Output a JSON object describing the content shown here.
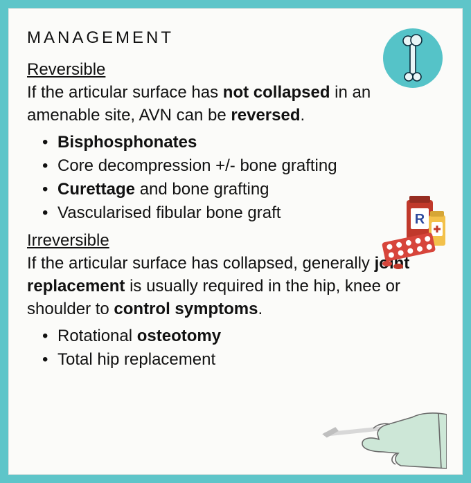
{
  "colors": {
    "background": "#5ec5c9",
    "card": "#fbfbf9",
    "text": "#111111",
    "bone_badge": "#55c3c8",
    "bone_outline": "#0a2b3a",
    "bottle_red": "#c0392b",
    "bottle_yellow": "#f3c14b",
    "bottle_blue": "#2e4a9e",
    "pill_red": "#d7453b",
    "pill_white": "#ffffff",
    "glove": "#cde7d7",
    "glove_outline": "#5a5a5a",
    "scalpel": "#d8d8d8"
  },
  "typography": {
    "heading_size_pt": 18,
    "body_size_pt": 18,
    "heading_letter_spacing": 4
  },
  "heading": "MANAGEMENT",
  "sections": [
    {
      "label": "Reversible",
      "intro_parts": [
        {
          "t": "If the articular surface has ",
          "b": false
        },
        {
          "t": "not collapsed",
          "b": true
        },
        {
          "t": " in an amenable site, AVN can be ",
          "b": false
        },
        {
          "t": "reversed",
          "b": true
        },
        {
          "t": ".",
          "b": false
        }
      ],
      "bullets": [
        [
          {
            "t": "Bisphosphonates",
            "b": true
          }
        ],
        [
          {
            "t": "Core decompression +/- bone grafting",
            "b": false
          }
        ],
        [
          {
            "t": "Curettage",
            "b": true
          },
          {
            "t": " and bone grafting",
            "b": false
          }
        ],
        [
          {
            "t": "Vascularised fibular bone graft",
            "b": false
          }
        ]
      ]
    },
    {
      "label": "Irreversible",
      "intro_parts": [
        {
          "t": "If the articular surface has collapsed, generally ",
          "b": false
        },
        {
          "t": "joint replacement",
          "b": true
        },
        {
          "t": " is usually required in the hip, knee or shoulder to ",
          "b": false
        },
        {
          "t": "control symptoms",
          "b": true
        },
        {
          "t": ".",
          "b": false
        }
      ],
      "bullets": [
        [
          {
            "t": "Rotational ",
            "b": false
          },
          {
            "t": "osteotomy",
            "b": true
          }
        ],
        [
          {
            "t": "Total hip replacement",
            "b": false
          }
        ]
      ]
    }
  ],
  "icons": {
    "bone": "bone-icon",
    "meds": "meds-icon",
    "hand": "gloved-hand-scalpel-icon"
  }
}
